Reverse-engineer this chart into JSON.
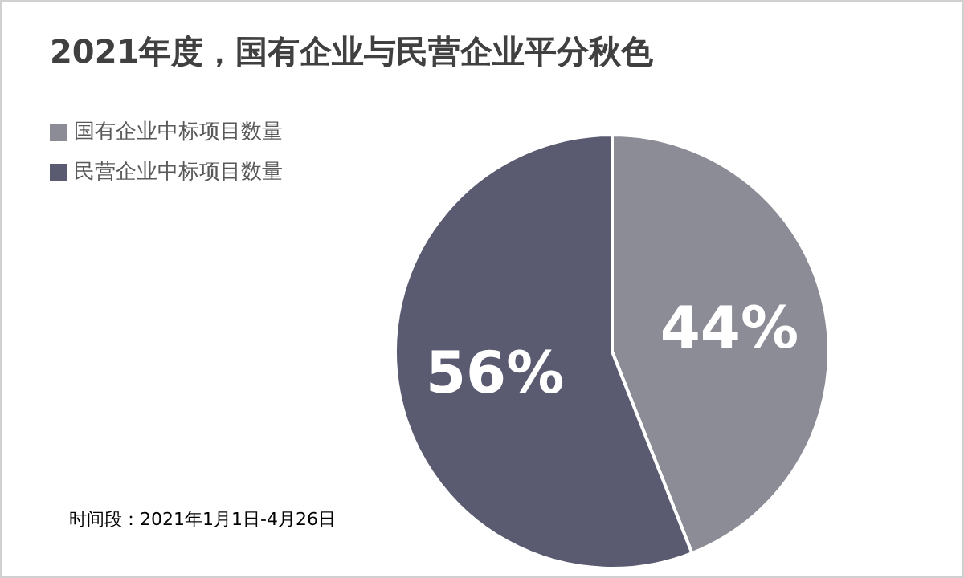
{
  "chart_data": {
    "type": "pie",
    "title": "2021年度，国有企业与民营企业平分秋色",
    "categories": [
      "国有企业中标项目数量",
      "民营企业中标项目数量"
    ],
    "values": [
      44,
      56
    ],
    "value_labels": [
      "44%",
      "56%"
    ],
    "colors": [
      "#8c8c96",
      "#5a5a70"
    ],
    "legend": "top left",
    "annotations": [
      "时间段：2021年1月1日-4月26日"
    ]
  }
}
